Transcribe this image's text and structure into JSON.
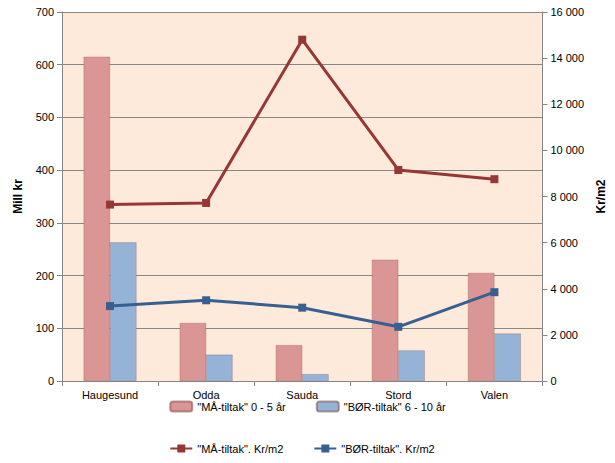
{
  "chart_data": {
    "type": "bar",
    "categories": [
      "Haugesund",
      "Odda",
      "Sauda",
      "Stord",
      "Valen"
    ],
    "y_label": "Mill kr",
    "y2_label": "Kr/m2",
    "ylim": [
      0,
      700
    ],
    "yticks": [
      0,
      100,
      200,
      300,
      400,
      500,
      600,
      700
    ],
    "y2lim": [
      0,
      16000
    ],
    "y2ticks": [
      0,
      {
        "value": 2000,
        "label": "2 000"
      },
      {
        "value": 4000,
        "label": "4 000"
      },
      {
        "value": 6000,
        "label": "6 000"
      },
      {
        "value": 8000,
        "label": "8 000"
      },
      {
        "value": 10000,
        "label": "10 000"
      },
      {
        "value": 12000,
        "label": "12 000"
      },
      {
        "value": 14000,
        "label": "14 000"
      },
      {
        "value": 16000,
        "label": "16 000"
      }
    ],
    "grid": true,
    "legend": "bottom",
    "series": [
      {
        "name": "\"MÅ-tiltak\" 0 - 5 år",
        "type": "bar",
        "color": "#d99694",
        "values": [
          615,
          110,
          68,
          230,
          205
        ]
      },
      {
        "name": "\"BØR-tiltak\" 6 - 10 år",
        "type": "bar",
        "color": "#95b3d7",
        "values": [
          263,
          50,
          13,
          58,
          90
        ]
      },
      {
        "name": "\"MÅ-tiltak\". Kr/m2",
        "type": "line",
        "axis": "y2",
        "color": "#953735",
        "marker": "square",
        "values": [
          7650,
          7720,
          14800,
          9150,
          8750
        ]
      },
      {
        "name": "\"BØR-tiltak\". Kr/m2",
        "type": "line",
        "axis": "y2",
        "color": "#376092",
        "marker": "square",
        "values": [
          3250,
          3500,
          3180,
          2350,
          3850
        ]
      }
    ]
  }
}
